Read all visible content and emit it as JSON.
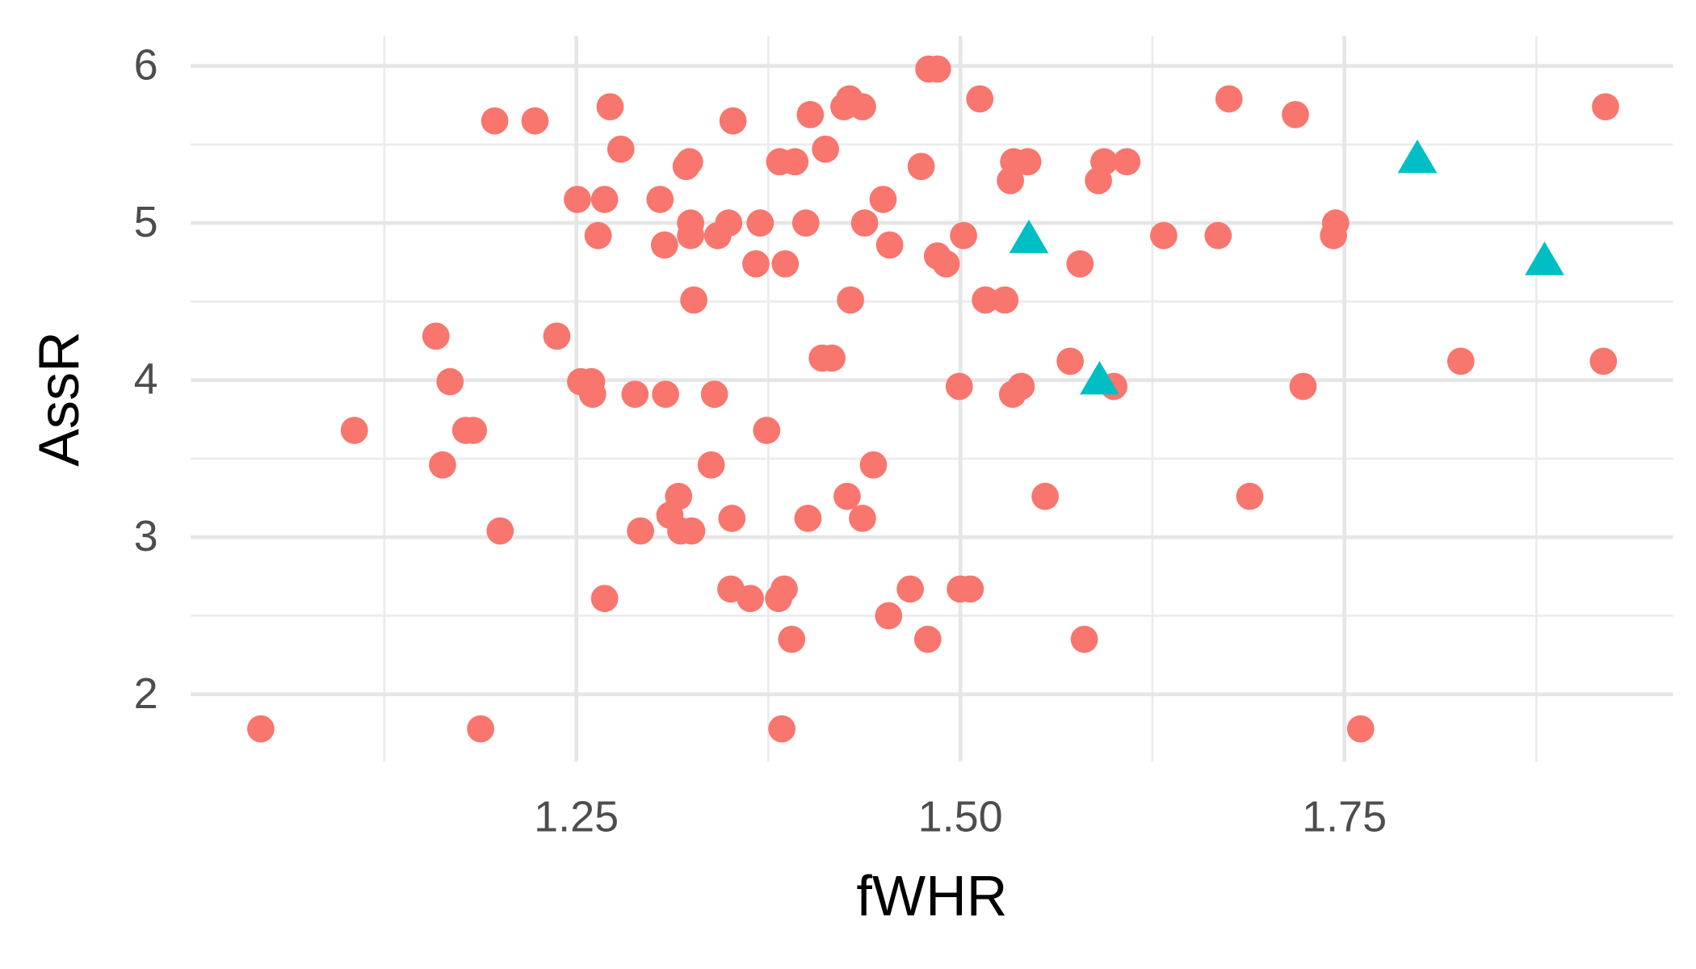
{
  "chart_data": {
    "type": "scatter",
    "x_label": "fWHR",
    "y_label": "AssR",
    "xlim": [
      0.999,
      1.964
    ],
    "ylim": [
      1.57,
      6.19
    ],
    "xticks": [
      1.25,
      {
        "value": 1.5,
        "label": "1.50"
      },
      1.75
    ],
    "yticks": [
      2,
      3,
      4,
      5,
      6
    ],
    "x_minor_ticks": [
      1.125,
      1.375,
      1.625,
      1.875
    ],
    "y_minor_ticks": [
      2.5,
      3.5,
      4.5,
      5.5
    ],
    "grid": true,
    "series": [
      {
        "color": "#F8766D",
        "marker": "circle",
        "x": [
          1.0446,
          1.1055,
          1.1586,
          1.1629,
          1.1678,
          1.178,
          1.183,
          1.1877,
          1.1969,
          1.2004,
          1.2231,
          1.2373,
          1.2507,
          1.2528,
          1.2599,
          1.2606,
          1.2642,
          1.2684,
          1.2684,
          1.272,
          1.279,
          1.2882,
          1.2918,
          1.3045,
          1.3074,
          1.3081,
          1.3109,
          1.3166,
          1.318,
          1.3215,
          1.3237,
          1.3244,
          1.3244,
          1.3251,
          1.3265,
          1.3378,
          1.3399,
          1.3421,
          1.3492,
          1.3506,
          1.3513,
          1.352,
          1.3633,
          1.3669,
          1.3697,
          1.3739,
          1.3817,
          1.3824,
          1.3838,
          1.3853,
          1.386,
          1.3902,
          1.3923,
          1.3994,
          1.4008,
          1.4023,
          1.4101,
          1.4122,
          1.4164,
          1.4242,
          1.4263,
          1.4278,
          1.4285,
          1.4363,
          1.4363,
          1.4377,
          1.4434,
          1.4497,
          1.4533,
          1.454,
          1.4674,
          1.4745,
          1.4788,
          1.4795,
          1.4851,
          1.4851,
          1.4908,
          1.4993,
          1.5,
          1.5021,
          1.5064,
          1.5127,
          1.5163,
          1.529,
          1.5326,
          1.534,
          1.5347,
          1.5396,
          1.5439,
          1.5552,
          1.5715,
          1.5779,
          1.5807,
          1.5899,
          1.5935,
          1.5999,
          1.6084,
          1.6324,
          1.6678,
          1.6749,
          1.6884,
          1.7181,
          1.7231,
          1.7429,
          1.7443,
          1.7606,
          1.8258,
          1.9186,
          1.92
        ],
        "values": [
          1.78,
          3.68,
          4.28,
          3.46,
          3.99,
          3.68,
          3.68,
          1.78,
          5.65,
          3.04,
          5.65,
          4.28,
          5.15,
          3.99,
          3.99,
          3.91,
          4.92,
          5.15,
          2.61,
          5.74,
          5.47,
          3.91,
          3.04,
          5.15,
          4.86,
          3.91,
          3.14,
          3.26,
          3.04,
          5.36,
          5.39,
          5.0,
          4.92,
          3.04,
          4.51,
          3.46,
          3.91,
          4.92,
          5.0,
          2.67,
          3.12,
          5.65,
          2.61,
          4.74,
          5.0,
          3.68,
          2.61,
          5.39,
          1.78,
          2.67,
          4.74,
          2.35,
          5.39,
          5.0,
          3.12,
          5.69,
          4.14,
          5.47,
          4.14,
          5.74,
          3.26,
          5.79,
          4.51,
          5.74,
          3.12,
          5.0,
          3.46,
          5.15,
          2.5,
          4.86,
          2.67,
          5.36,
          2.35,
          5.98,
          5.98,
          4.79,
          4.74,
          3.96,
          2.67,
          4.92,
          2.67,
          5.79,
          4.51,
          4.51,
          5.27,
          3.91,
          5.39,
          3.96,
          5.39,
          3.26,
          4.12,
          4.74,
          2.35,
          5.27,
          5.39,
          3.96,
          5.39,
          4.92,
          4.92,
          5.79,
          3.26,
          5.69,
          3.96,
          4.92,
          5.0,
          1.78,
          4.12,
          4.12,
          5.74
        ]
      },
      {
        "color": "#00BFC4",
        "marker": "triangle",
        "x": [
          1.5446,
          1.5906,
          1.7975,
          1.8803
        ],
        "values": [
          4.89,
          3.99,
          5.4,
          4.75
        ]
      }
    ]
  }
}
